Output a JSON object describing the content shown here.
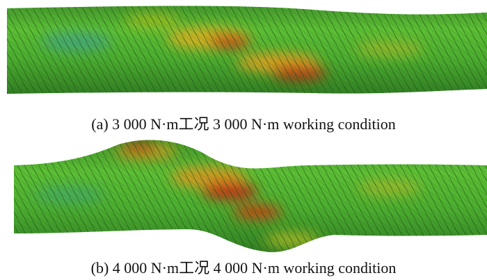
{
  "panels": [
    {
      "caption": "(a) 3 000 N·m工况 3 000 N·m working condition"
    },
    {
      "caption": "(b) 4 000 N·m工况 4 000 N·m working condition"
    }
  ]
}
